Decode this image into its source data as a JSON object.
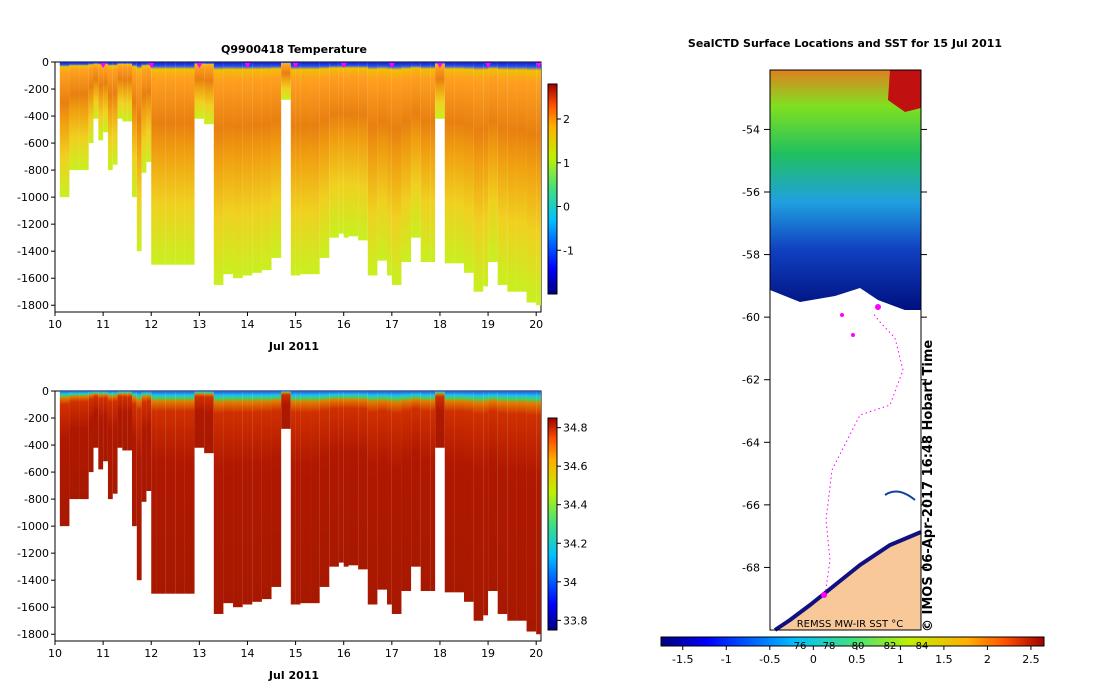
{
  "chart_data": [
    {
      "type": "heatmap",
      "title": "Q9900418  Temperature",
      "xlabel": "Jul 2011",
      "ylabel": "",
      "xlim": [
        10,
        20.1
      ],
      "ylim": [
        -1850,
        0
      ],
      "xticks": [
        "10",
        "11",
        "12",
        "13",
        "14",
        "15",
        "16",
        "17",
        "18",
        "19",
        "20"
      ],
      "yticks": [
        "0",
        "-200",
        "-400",
        "-600",
        "-800",
        "-1000",
        "-1200",
        "-1400",
        "-1600",
        "-1800"
      ],
      "colorbar": {
        "min": -2,
        "max": 2.8,
        "ticks": [
          "-1",
          "0",
          "1",
          "2"
        ]
      },
      "profile_days": [
        10.1,
        10.3,
        10.5,
        10.7,
        10.8,
        10.9,
        11.0,
        11.1,
        11.2,
        11.3,
        11.4,
        11.5,
        11.6,
        11.7,
        11.8,
        11.9,
        12.0,
        12.1,
        12.3,
        12.5,
        12.7,
        12.9,
        13.1,
        13.3,
        13.5,
        13.7,
        13.9,
        14.0,
        14.1,
        14.3,
        14.5,
        14.7,
        14.9,
        15.0,
        15.1,
        15.3,
        15.5,
        15.7,
        15.9,
        16.0,
        16.1,
        16.3,
        16.5,
        16.7,
        16.9,
        17.0,
        17.2,
        17.4,
        17.6,
        17.8,
        17.9,
        18.1,
        18.3,
        18.5,
        18.7,
        18.9,
        19.0,
        19.2,
        19.4,
        19.6,
        19.8,
        20.0
      ],
      "profile_max_depth": [
        -1000,
        -800,
        -800,
        -600,
        -420,
        -580,
        -520,
        -800,
        -760,
        -420,
        -440,
        -440,
        -1000,
        -1400,
        -820,
        -740,
        -1500,
        -1500,
        -1500,
        -1500,
        -1500,
        -420,
        -460,
        -1650,
        -1570,
        -1600,
        -1580,
        -1580,
        -1560,
        -1540,
        -1450,
        -280,
        -1580,
        -1580,
        -1570,
        -1570,
        -1450,
        -1300,
        -1270,
        -1300,
        -1290,
        -1320,
        -1580,
        -1470,
        -1580,
        -1650,
        -1480,
        -1300,
        -1480,
        -1480,
        -420,
        -1490,
        -1490,
        -1560,
        -1700,
        -1660,
        -1480,
        -1650,
        -1700,
        -1700,
        -1780,
        -1800
      ],
      "x_markers": [
        11,
        12,
        13,
        14,
        15,
        16,
        17,
        18,
        19,
        20.05
      ]
    },
    {
      "type": "heatmap",
      "title": "",
      "xlabel": "Jul 2011",
      "ylabel": "",
      "xlim": [
        10,
        20.1
      ],
      "ylim": [
        -1850,
        0
      ],
      "xticks": [
        "10",
        "11",
        "12",
        "13",
        "14",
        "15",
        "16",
        "17",
        "18",
        "19",
        "20"
      ],
      "yticks": [
        "0",
        "-200",
        "-400",
        "-600",
        "-800",
        "-1000",
        "-1200",
        "-1400",
        "-1600",
        "-1800"
      ],
      "colorbar": {
        "min": 33.75,
        "max": 34.85,
        "ticks": [
          "33.8",
          "34",
          "34.2",
          "34.4",
          "34.6",
          "34.8"
        ]
      }
    },
    {
      "type": "heatmap",
      "title": "SealCTD Surface Locations and SST for 15 Jul 2011",
      "xlabel": "",
      "ylabel": "",
      "ylim": [
        -70,
        -52.1
      ],
      "yticks": [
        "-54",
        "-56",
        "-58",
        "-60",
        "-62",
        "-64",
        "-66",
        "-68"
      ],
      "colorbar": {
        "min": -1.75,
        "max": 2.65,
        "ticks": [
          "-1.5",
          "-1",
          "-0.5",
          "0",
          "0.5",
          "1",
          "1.5",
          "2",
          "2.5"
        ]
      },
      "colorbar_overlay_labels": [
        "76",
        "78",
        "80",
        "82",
        "84"
      ],
      "source_label": "REMSS MW-IR SST °C",
      "stamp": "© IMOS 06-Apr-2017 16:48 Hobart Time"
    }
  ]
}
